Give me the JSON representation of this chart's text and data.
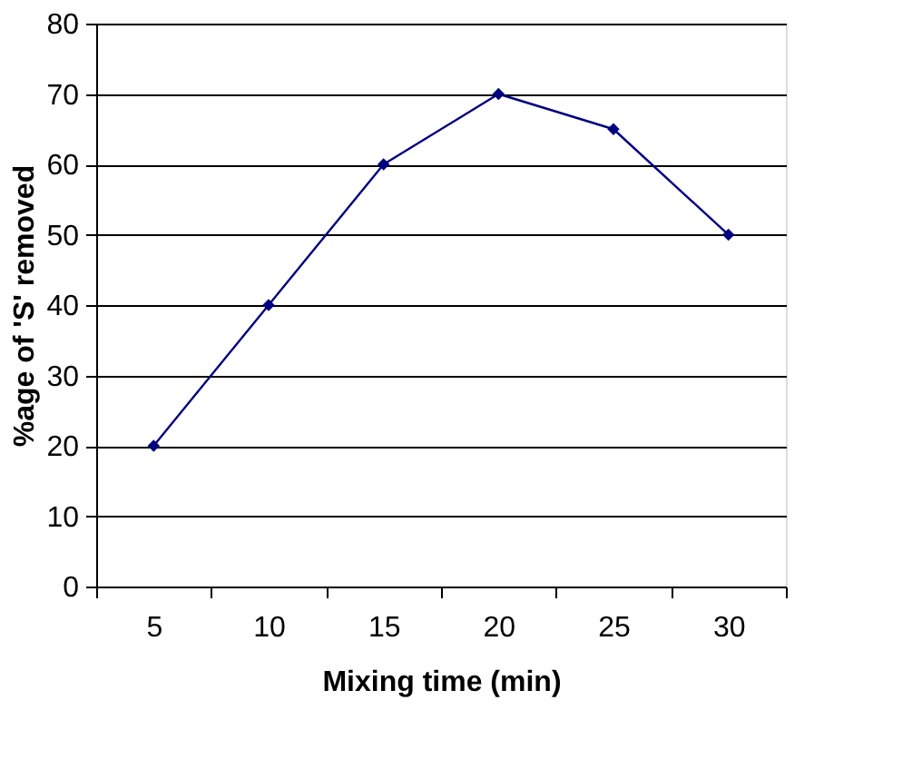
{
  "chart_data": {
    "type": "line",
    "xlabel": "Mixing time (min)",
    "ylabel": "%age of 'S' removed",
    "categories": [
      "5",
      "10",
      "15",
      "20",
      "25",
      "30"
    ],
    "series": [
      {
        "color": "#000080",
        "values": [
          20,
          40,
          60,
          70,
          65,
          50
        ]
      }
    ],
    "ylim": [
      0,
      80
    ],
    "yticks": [
      0,
      10,
      20,
      30,
      40,
      50,
      60,
      70,
      80
    ],
    "grid": "y",
    "marker": "diamond",
    "line_style": "solid"
  }
}
